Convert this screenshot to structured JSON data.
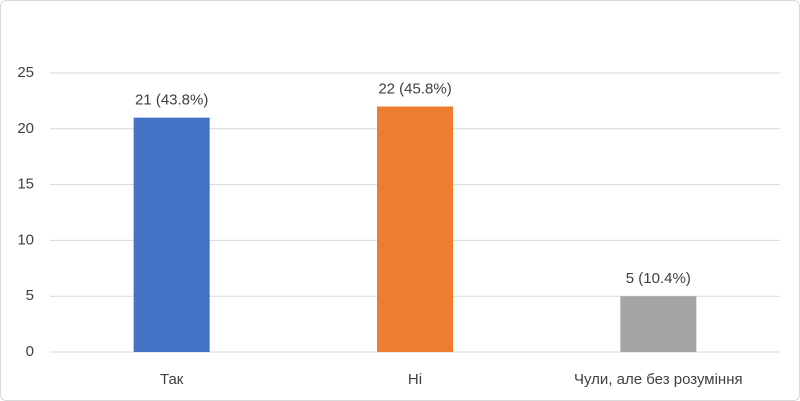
{
  "chart_data": {
    "type": "bar",
    "categories": [
      "Так",
      "Ні",
      "Чули, але без розуміння"
    ],
    "values": [
      21,
      22,
      5
    ],
    "value_labels": [
      "21 (43.8%)",
      "22 (45.8%)",
      "5 (10.4%)"
    ],
    "colors": [
      "#4472c4",
      "#ed7d31",
      "#a5a5a5"
    ],
    "ylim": [
      0,
      25
    ],
    "yticks": [
      0,
      5,
      10,
      15,
      20,
      25
    ],
    "grid": true
  }
}
